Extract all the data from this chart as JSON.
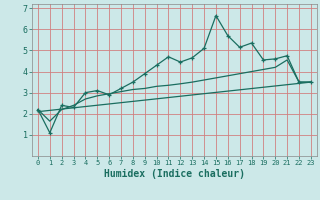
{
  "xlabel": "Humidex (Indice chaleur)",
  "ylabel": "",
  "background_color": "#cce8e8",
  "grid_color": "#d08080",
  "line_color": "#1a6e60",
  "xlim": [
    -0.5,
    23.5
  ],
  "ylim": [
    0,
    7.2
  ],
  "yticks": [
    1,
    2,
    3,
    4,
    5,
    6,
    7
  ],
  "xticks": [
    0,
    1,
    2,
    3,
    4,
    5,
    6,
    7,
    8,
    9,
    10,
    11,
    12,
    13,
    14,
    15,
    16,
    17,
    18,
    19,
    20,
    21,
    22,
    23
  ],
  "jagged_x": [
    0,
    1,
    2,
    3,
    4,
    5,
    6,
    7,
    8,
    9,
    10,
    11,
    12,
    13,
    14,
    15,
    16,
    17,
    18,
    19,
    20,
    21,
    22,
    23
  ],
  "jagged_y": [
    2.2,
    1.1,
    2.4,
    2.3,
    3.0,
    3.1,
    2.9,
    3.2,
    3.5,
    3.9,
    4.3,
    4.7,
    4.45,
    4.65,
    5.1,
    6.65,
    5.7,
    5.15,
    5.35,
    4.55,
    4.6,
    4.75,
    3.5,
    3.5
  ],
  "line1_x": [
    0,
    1,
    2,
    3,
    4,
    5,
    6,
    7,
    8,
    9,
    10,
    11,
    12,
    13,
    14,
    15,
    16,
    17,
    18,
    19,
    20,
    21,
    22,
    23
  ],
  "line1_y": [
    2.2,
    1.65,
    2.2,
    2.4,
    2.7,
    2.85,
    2.95,
    3.05,
    3.15,
    3.2,
    3.3,
    3.35,
    3.42,
    3.5,
    3.6,
    3.7,
    3.8,
    3.9,
    4.0,
    4.1,
    4.2,
    4.55,
    3.5,
    3.5
  ],
  "line2_x": [
    0,
    23
  ],
  "line2_y": [
    2.1,
    3.5
  ]
}
